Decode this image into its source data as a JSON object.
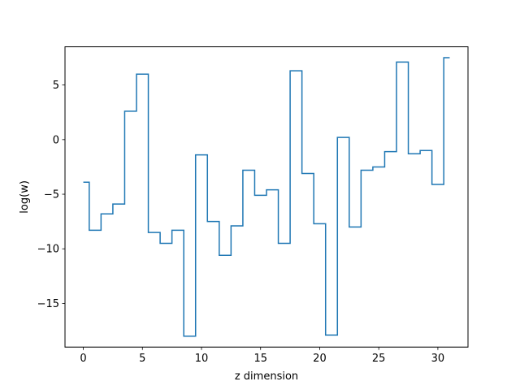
{
  "chart_data": {
    "type": "line",
    "drawstyle": "steps-mid",
    "xlabel": "z dimension",
    "ylabel": "log(w)",
    "xlim": [
      -1.55,
      32.55
    ],
    "ylim": [
      -19.0,
      8.5
    ],
    "xticks": [
      0,
      5,
      10,
      15,
      20,
      25,
      30
    ],
    "yticks": [
      -15,
      -10,
      -5,
      0,
      5
    ],
    "xtick_labels": [
      "0",
      "5",
      "10",
      "15",
      "20",
      "25",
      "30"
    ],
    "ytick_labels": [
      "−15",
      "−10",
      "−5",
      "0",
      "5"
    ],
    "grid": false,
    "series": [
      {
        "color": "#1f77b4",
        "x": [
          0,
          1,
          2,
          3,
          4,
          5,
          6,
          7,
          8,
          9,
          10,
          11,
          12,
          13,
          14,
          15,
          16,
          17,
          18,
          19,
          20,
          21,
          22,
          23,
          24,
          25,
          26,
          27,
          28,
          29,
          30,
          31
        ],
        "y": [
          -3.9,
          -8.3,
          -6.8,
          -5.9,
          2.6,
          6.0,
          -8.5,
          -9.5,
          -8.3,
          -18.0,
          -1.4,
          -7.5,
          -10.6,
          -7.9,
          -2.8,
          -5.1,
          -4.6,
          -9.5,
          6.3,
          -3.1,
          -7.7,
          -17.9,
          0.2,
          -8.0,
          -2.8,
          -2.5,
          -1.1,
          7.1,
          -1.3,
          -1.0,
          -4.1,
          7.5
        ]
      }
    ]
  }
}
